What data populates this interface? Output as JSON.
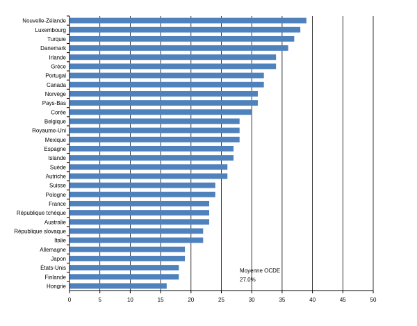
{
  "chart_data": {
    "type": "bar",
    "orientation": "horizontal",
    "title": "",
    "xlabel": "",
    "ylabel": "",
    "xlim": [
      0,
      50
    ],
    "xticks": [
      0,
      5,
      10,
      15,
      20,
      25,
      30,
      35,
      40,
      45,
      50
    ],
    "grid": "vertical",
    "bar_color": "#4f81bd",
    "categories": [
      "Nouvelle-Zélande",
      "Luxembourg",
      "Turquie",
      "Danemark",
      "Irlande",
      "Grèce",
      "Portugal",
      "Canada",
      "Norvège",
      "Pays-Bas",
      "Corée",
      "Belgique",
      "Royaume-Uni",
      "Mexique",
      "Espagne",
      "Islande",
      "Suède",
      "Autriche",
      "Suisse",
      "Pologne",
      "France",
      "République tchèque",
      "Australie",
      "République slovaque",
      "Italie",
      "Allemagne",
      "Japon",
      "États-Unis",
      "Finlande",
      "Hongrie"
    ],
    "values": [
      39,
      38,
      37,
      36,
      34,
      34,
      32,
      32,
      31,
      31,
      30,
      28,
      28,
      28,
      27,
      27,
      26,
      26,
      24,
      24,
      23,
      23,
      23,
      22,
      22,
      19,
      19,
      18,
      18,
      16
    ],
    "annotation": {
      "line1": "Moyenne OCDE",
      "line2": "27.0%"
    }
  }
}
